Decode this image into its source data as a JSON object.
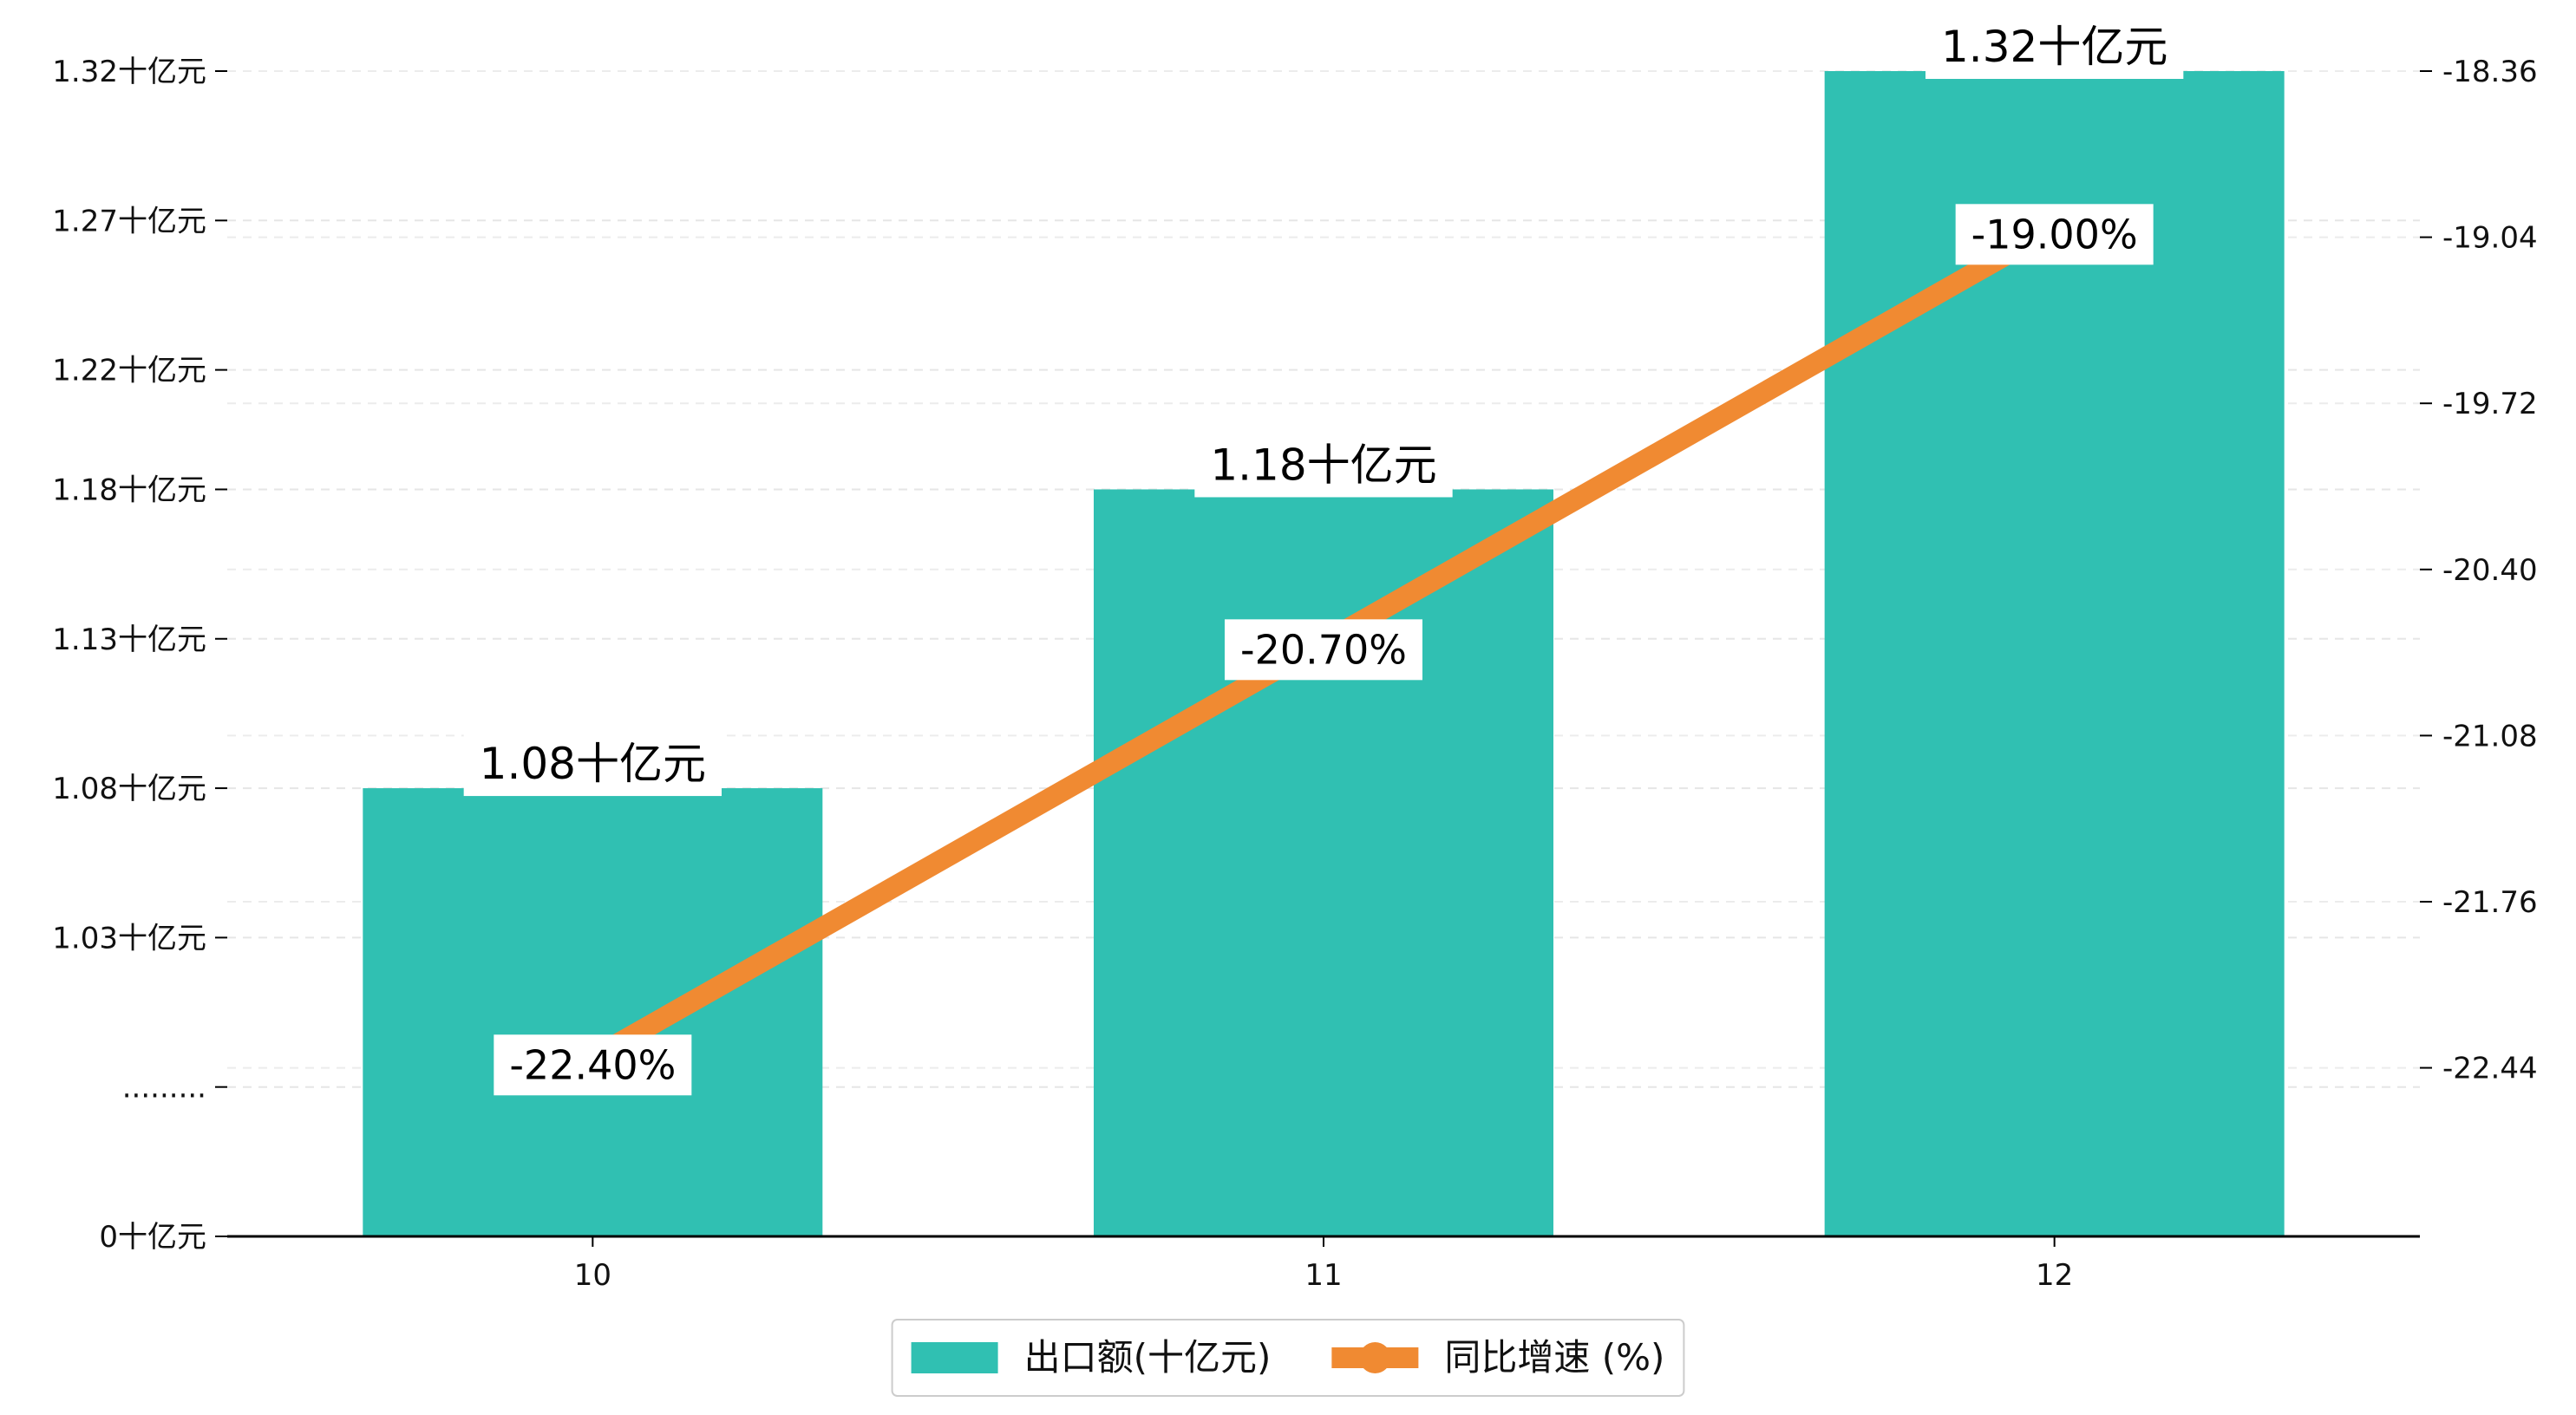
{
  "chart_data": {
    "type": "bar",
    "categories": [
      "10",
      "11",
      "12"
    ],
    "series": [
      {
        "name": "出口额(十亿元)",
        "kind": "bar",
        "axis": "left",
        "values": [
          1.08,
          1.18,
          1.32
        ],
        "labels": [
          "1.08十亿元",
          "1.18十亿元",
          "1.32十亿元"
        ],
        "color": "#30c0b2"
      },
      {
        "name": "同比增速 (%)",
        "kind": "line",
        "axis": "right",
        "values": [
          -22.4,
          -20.7,
          -19.0
        ],
        "labels": [
          "-22.40%",
          "-20.70%",
          "-19.00%"
        ],
        "color": "#f08a32"
      }
    ],
    "left_axis": {
      "ylim": [
        0.93,
        1.32
      ],
      "broken": true,
      "ticks": [
        {
          "value": 0.93,
          "label": "0十亿元"
        },
        {
          "value": 0.98,
          "label": "........."
        },
        {
          "value": 1.03,
          "label": "1.03十亿元"
        },
        {
          "value": 1.08,
          "label": "1.08十亿元"
        },
        {
          "value": 1.13,
          "label": "1.13十亿元"
        },
        {
          "value": 1.18,
          "label": "1.18十亿元"
        },
        {
          "value": 1.22,
          "label": "1.22十亿元"
        },
        {
          "value": 1.27,
          "label": "1.27十亿元"
        },
        {
          "value": 1.32,
          "label": "1.32十亿元"
        }
      ]
    },
    "right_axis": {
      "ylim": [
        -23.13,
        -18.36
      ],
      "ticks": [
        {
          "value": -22.44,
          "label": "-22.44"
        },
        {
          "value": -21.76,
          "label": "-21.76"
        },
        {
          "value": -21.08,
          "label": "-21.08"
        },
        {
          "value": -20.4,
          "label": "-20.40"
        },
        {
          "value": -19.72,
          "label": "-19.72"
        },
        {
          "value": -19.04,
          "label": "-19.04"
        },
        {
          "value": -18.36,
          "label": "-18.36"
        }
      ]
    },
    "grid": true,
    "legend_position": "bottom-center"
  }
}
